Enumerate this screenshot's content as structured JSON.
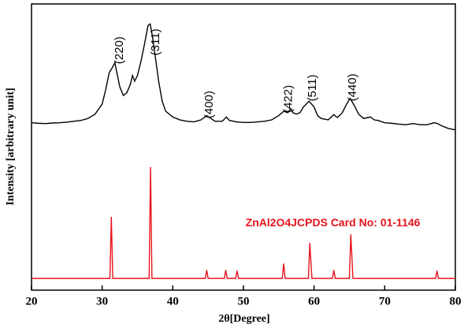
{
  "chart_data": {
    "type": "line",
    "xlabel": "2θ[Degree]",
    "ylabel": "Intensity [arbitrary unit]",
    "xlim": [
      20,
      80
    ],
    "ylim": [
      0,
      100
    ],
    "xticks": [
      20,
      30,
      40,
      50,
      60,
      70,
      80
    ],
    "series": [
      {
        "color": "#000000",
        "x": [
          20,
          21,
          22,
          23,
          24,
          25,
          26,
          27,
          28,
          29,
          30,
          30.5,
          31,
          31.5,
          31.8,
          32,
          32.5,
          33,
          33.5,
          34,
          34.3,
          34.6,
          35,
          35.5,
          36,
          36.5,
          36.8,
          37.1,
          37.5,
          38,
          38.5,
          39,
          40,
          41,
          42,
          43,
          44,
          44.8,
          45.5,
          46,
          47,
          47.6,
          48,
          49,
          50,
          51,
          52,
          53,
          54,
          55,
          55.7,
          56.3,
          56.7,
          57,
          57.5,
          58,
          58.5,
          59.3,
          60,
          60.5,
          61,
          62,
          62.8,
          63.3,
          64,
          64.6,
          65.1,
          65.7,
          66.3,
          67,
          68,
          68.5,
          69,
          70,
          71,
          72,
          73,
          74,
          75,
          76,
          77,
          77.5,
          78,
          79,
          80
        ],
        "values": [
          58.5,
          58.3,
          58.2,
          58.4,
          58.5,
          58.7,
          59,
          59.3,
          60,
          61.5,
          65,
          70,
          76,
          78,
          79.5,
          77,
          71,
          68,
          69,
          72,
          75,
          73,
          75,
          80,
          86,
          92.5,
          93,
          89,
          82,
          73,
          66,
          62.5,
          60.5,
          59.5,
          59,
          58.8,
          59.5,
          61,
          59.8,
          59,
          59,
          60.5,
          59.3,
          58.8,
          58.6,
          58.6,
          58.8,
          59,
          59.5,
          61,
          62.5,
          62,
          63.5,
          62,
          61.5,
          62,
          64,
          66,
          64,
          61,
          60,
          59.5,
          61.3,
          60.3,
          62,
          65,
          67,
          64.5,
          61.5,
          60,
          60.5,
          59.5,
          59.3,
          58.5,
          58.3,
          58,
          57.8,
          58.2,
          57.8,
          57.8,
          58.5,
          58.2,
          57.5,
          56.5,
          56
        ]
      },
      {
        "name": "ZnAl2O4JCPDS Card No: 01-1146",
        "color": "#e8141c",
        "x": [
          20,
          31.1,
          31.3,
          31.5,
          36.65,
          36.85,
          37.05,
          44.6,
          44.8,
          45,
          47.3,
          47.5,
          47.7,
          48.9,
          49.1,
          49.3,
          55.5,
          55.7,
          55.9,
          59.2,
          59.4,
          59.55,
          59.7,
          62.6,
          62.8,
          63,
          65,
          65.2,
          65.35,
          65.5,
          77.2,
          77.4,
          77.6,
          80
        ],
        "values": [
          4.1,
          4.1,
          25.6,
          4.1,
          4.1,
          43,
          4.1,
          4.1,
          7,
          4.1,
          4.1,
          7,
          4.1,
          4.1,
          6.8,
          4.1,
          4.1,
          9.3,
          4.1,
          4.1,
          16.5,
          10,
          4.1,
          4.1,
          7,
          4.1,
          4.1,
          19.5,
          12,
          4.1,
          4.1,
          6.8,
          4.1,
          4.1
        ]
      }
    ],
    "annotations": [
      {
        "text": "(220)",
        "x": 32.5,
        "y": 79
      },
      {
        "text": "(311)",
        "x": 37.6,
        "y": 82
      },
      {
        "text": "(400)",
        "x": 45.2,
        "y": 60
      },
      {
        "text": "(422)",
        "x": 56.4,
        "y": 62
      },
      {
        "text": "(511)",
        "x": 59.8,
        "y": 66
      },
      {
        "text": "(440)",
        "x": 65.5,
        "y": 66
      }
    ],
    "legend": {
      "x": 50.3,
      "y": 23.4
    }
  }
}
